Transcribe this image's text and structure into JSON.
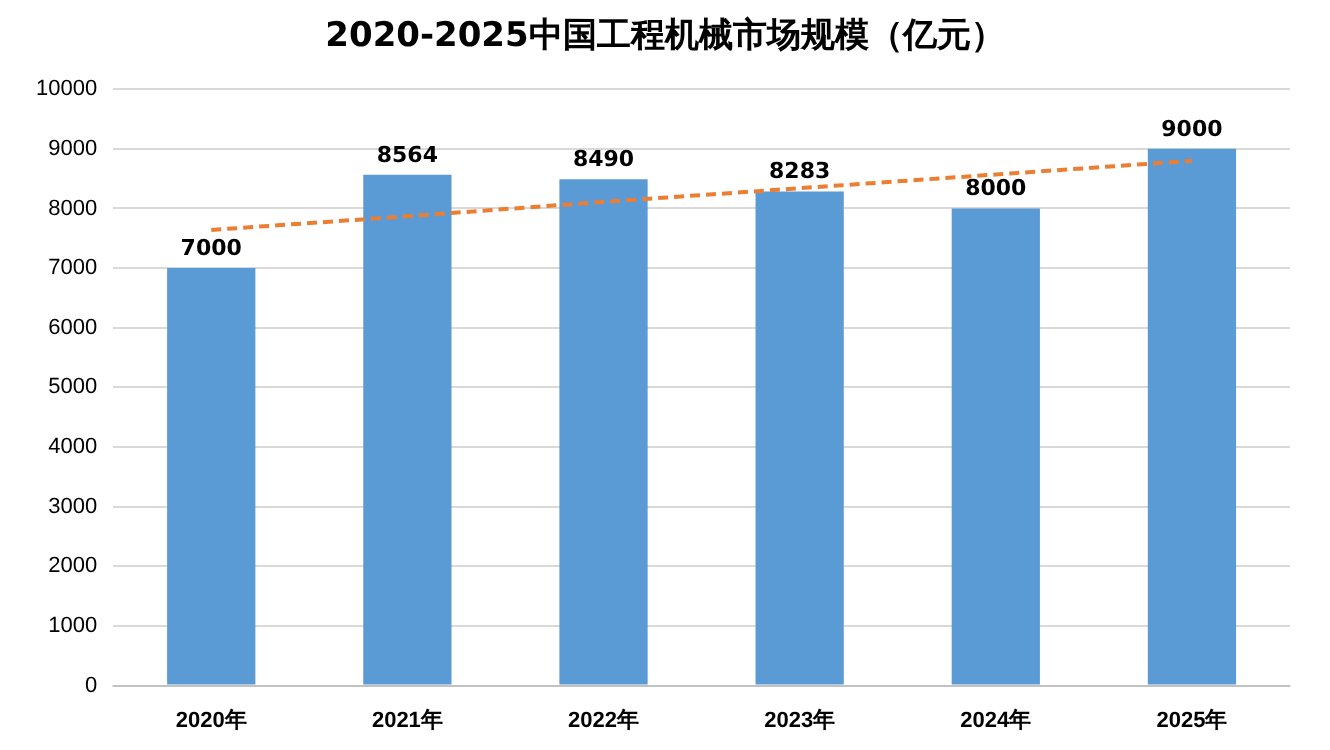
{
  "chart_data": {
    "type": "bar",
    "title": "2020-2025中国工程机械市场规模（亿元）",
    "categories": [
      "2020年",
      "2021年",
      "2022年",
      "2023年",
      "2024年",
      "2025年"
    ],
    "series": [
      {
        "color": "#5b9bd5",
        "values": [
          7000,
          8564,
          8490,
          8283,
          8000,
          9000
        ],
        "value_labels": [
          "7000",
          "8564",
          "8490",
          "8283",
          "8000",
          "9000"
        ]
      },
      {
        "type": "line",
        "color": "#ed7d31",
        "values": [
          7640,
          7870,
          8110,
          8340,
          8570,
          8800
        ],
        "line_style": "dashed",
        "marker": "none"
      }
    ],
    "ylim": [
      0,
      10000
    ],
    "yticks": [
      0,
      1000,
      2000,
      3000,
      4000,
      5000,
      6000,
      7000,
      8000,
      9000,
      10000
    ],
    "grid": "y",
    "legend": false
  }
}
